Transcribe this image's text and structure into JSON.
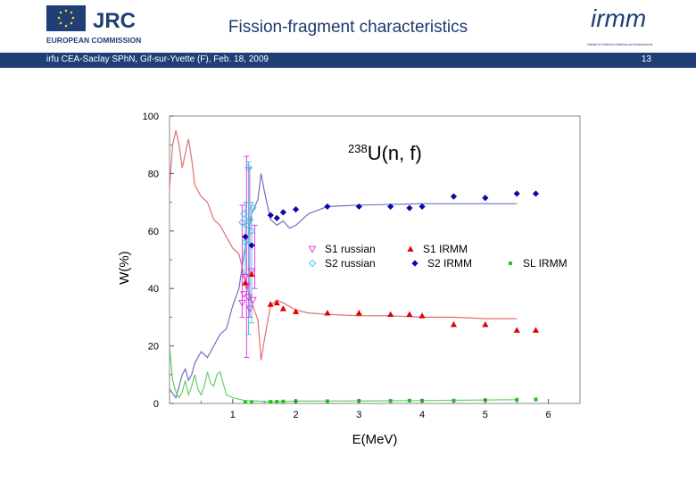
{
  "header": {
    "title": "Fission-fragment characteristics",
    "jrc_logo_text": "JRC",
    "jrc_subtitle": "EUROPEAN COMMISSION",
    "irmm_logo_text": "irmm",
    "irmm_subtitle": "Institute for Reference Materials and Measurements",
    "banner_text": "irfu CEA-Saclay SPhN, Gif-sur-Yvette (F), Feb. 18, 2009",
    "page_number": "13"
  },
  "colors": {
    "banner": "#1f3f76",
    "s1": "#e60000",
    "s2": "#0a0aa8",
    "sl": "#22c022",
    "russian_s1": "#e040e0",
    "russian_s2": "#40c8e0",
    "curve_s1": "#e07070",
    "curve_s2": "#7070c0",
    "curve_sl": "#66d066"
  },
  "chart_data": {
    "type": "scatter",
    "title": "",
    "annotation": "238U(n, f)",
    "annotation_sup": "238",
    "annotation_main": "U(n, f)",
    "xlabel": "E(MeV)",
    "ylabel": "W(%)",
    "xlim": [
      0,
      6.5
    ],
    "ylim": [
      0,
      100
    ],
    "xticks": [
      "1",
      "2",
      "3",
      "4",
      "5",
      "6"
    ],
    "xtick_values": [
      1,
      2,
      3,
      4,
      5,
      6
    ],
    "yticks": [
      "0",
      "20",
      "40",
      "60",
      "80",
      "100"
    ],
    "ytick_values": [
      0,
      20,
      40,
      60,
      80,
      100
    ],
    "grid": false,
    "legend_position": "center-right",
    "series": [
      {
        "name": "S1 russian",
        "marker": "triangle-down-open",
        "color": "#e040e0",
        "x": [
          1.15,
          1.18,
          1.2,
          1.22,
          1.25,
          1.27,
          1.3,
          1.32
        ],
        "y": [
          35,
          38,
          44,
          41,
          37,
          33,
          46,
          36
        ]
      },
      {
        "name": "S1 IRMM",
        "marker": "triangle",
        "color": "#e60000",
        "x": [
          1.2,
          1.3,
          1.6,
          1.7,
          1.8,
          2.0,
          2.5,
          3.0,
          3.5,
          3.8,
          4.0,
          4.5,
          5.0,
          5.5,
          5.8
        ],
        "y": [
          42,
          45,
          34.5,
          35,
          33,
          32,
          31.5,
          31.5,
          31,
          31,
          30.5,
          27.5,
          27.5,
          25.5,
          25.5
        ]
      },
      {
        "name": "S2 russian",
        "marker": "diamond-open",
        "color": "#40c8e0",
        "x": [
          1.15,
          1.18,
          1.2,
          1.22,
          1.25,
          1.27,
          1.3,
          1.32
        ],
        "y": [
          63,
          66,
          56,
          62,
          82,
          64,
          60,
          68
        ]
      },
      {
        "name": "S2 IRMM",
        "marker": "diamond",
        "color": "#0a0aa8",
        "x": [
          1.2,
          1.3,
          1.6,
          1.7,
          1.8,
          2.0,
          2.5,
          3.0,
          3.5,
          3.8,
          4.0,
          4.5,
          5.0,
          5.5,
          5.8
        ],
        "y": [
          58,
          55,
          65.5,
          64.5,
          66.5,
          67.5,
          68.5,
          68.5,
          68.5,
          68,
          68.5,
          72,
          71.5,
          73,
          73
        ]
      },
      {
        "name": "SL IRMM",
        "marker": "square",
        "color": "#22c022",
        "x": [
          1.2,
          1.3,
          1.6,
          1.7,
          1.8,
          2.0,
          2.5,
          3.0,
          3.5,
          3.8,
          4.0,
          4.5,
          5.0,
          5.5,
          5.8
        ],
        "y": [
          0.5,
          0.5,
          0.6,
          0.6,
          0.7,
          0.8,
          0.8,
          0.9,
          0.9,
          1.0,
          1.0,
          1.0,
          1.2,
          1.3,
          1.4
        ]
      }
    ],
    "curves": [
      {
        "name_hint": "S1 calc",
        "color": "#e07070",
        "x": [
          0,
          0.05,
          0.1,
          0.15,
          0.2,
          0.3,
          0.35,
          0.4,
          0.5,
          0.6,
          0.7,
          0.8,
          0.9,
          1.0,
          1.1,
          1.2,
          1.3,
          1.4,
          1.45,
          1.5,
          1.6,
          1.7,
          1.8,
          2.0,
          2.2,
          2.5,
          3.0,
          3.5,
          4.0,
          4.5,
          5.0,
          5.5
        ],
        "y": [
          75,
          90,
          95,
          90,
          82,
          92,
          85,
          76,
          72,
          70,
          64,
          62,
          58,
          54,
          52,
          43,
          35,
          29,
          15,
          22,
          34,
          36,
          35,
          32.5,
          31.5,
          31,
          30.5,
          30.5,
          30,
          30,
          29.5,
          29.5
        ]
      },
      {
        "name_hint": "S2 calc",
        "color": "#7070c0",
        "x": [
          0,
          0.1,
          0.2,
          0.25,
          0.3,
          0.35,
          0.4,
          0.5,
          0.6,
          0.7,
          0.8,
          0.9,
          1.0,
          1.1,
          1.2,
          1.25,
          1.3,
          1.4,
          1.45,
          1.5,
          1.6,
          1.7,
          1.8,
          1.9,
          2.0,
          2.2,
          2.5,
          3.0,
          4.0,
          5.0,
          5.5
        ],
        "y": [
          5,
          2,
          10,
          12,
          8,
          10,
          14,
          18,
          16,
          20,
          24,
          26,
          34,
          40,
          55,
          59,
          66,
          71,
          80,
          74,
          64,
          62,
          63.5,
          61,
          62,
          66,
          68.5,
          69,
          69.5,
          69.5,
          69.5
        ]
      },
      {
        "name_hint": "SL calc",
        "color": "#66d066",
        "x": [
          0,
          0.05,
          0.1,
          0.15,
          0.2,
          0.25,
          0.3,
          0.35,
          0.4,
          0.45,
          0.5,
          0.55,
          0.6,
          0.65,
          0.7,
          0.75,
          0.8,
          0.85,
          0.9,
          1.0,
          1.1,
          1.2,
          1.4,
          1.6,
          2.0,
          3.0,
          4.0,
          5.0,
          5.5
        ],
        "y": [
          20,
          8,
          4,
          2,
          4,
          8,
          3,
          6,
          10,
          5,
          3,
          6,
          11,
          7,
          6,
          10,
          11,
          7,
          3,
          2,
          1.5,
          1,
          0.8,
          0.6,
          0.8,
          0.9,
          1.0,
          1.2,
          1.3
        ]
      }
    ],
    "error_bars": [
      {
        "x": 1.15,
        "ylo": 30,
        "yhi": 69,
        "color": "#e040e0"
      },
      {
        "x": 1.2,
        "ylo": 45,
        "yhi": 70,
        "color": "#40c8e0"
      },
      {
        "x": 1.22,
        "ylo": 16,
        "yhi": 86,
        "color": "#e040e0"
      },
      {
        "x": 1.25,
        "ylo": 24,
        "yhi": 84,
        "color": "#40c8e0"
      },
      {
        "x": 1.27,
        "ylo": 30,
        "yhi": 82,
        "color": "#e040e0"
      },
      {
        "x": 1.3,
        "ylo": 28,
        "yhi": 70,
        "color": "#40c8e0"
      },
      {
        "x": 1.35,
        "ylo": 40,
        "yhi": 62,
        "color": "#e040e0"
      }
    ]
  }
}
